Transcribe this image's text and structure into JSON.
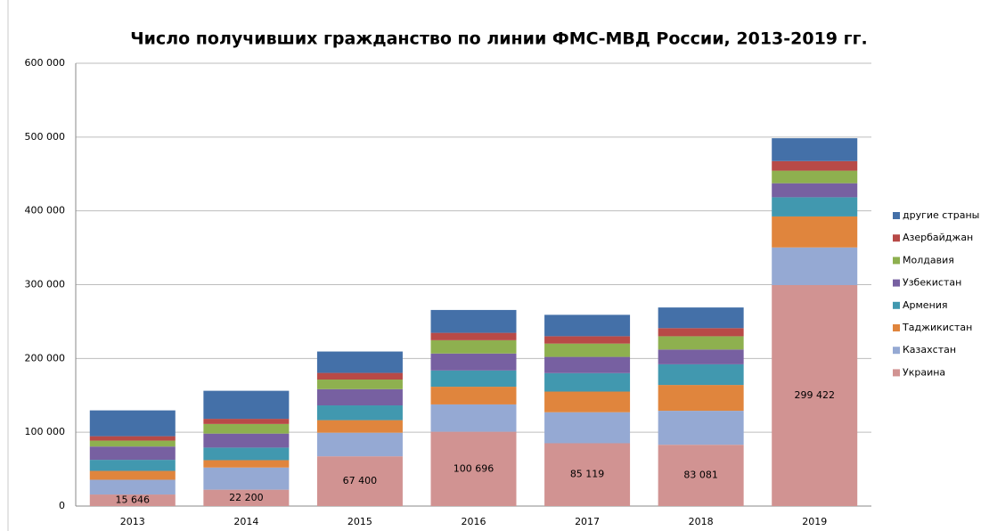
{
  "chart_data": {
    "type": "stacked_bar",
    "title": "Число получивших гражданство по линии ФМС-МВД России, 2013-2019 гг.",
    "categories": [
      "2013",
      "2014",
      "2015",
      "2016",
      "2017",
      "2018",
      "2019"
    ],
    "series": [
      {
        "name": "Украина",
        "color": "#d19392",
        "values": [
          15646,
          22200,
          67400,
          100696,
          85119,
          83081,
          299422
        ],
        "value_labels": [
          "15 646",
          "22 200",
          "67 400",
          "100 696",
          "85 119",
          "83 081",
          "299 422"
        ]
      },
      {
        "name": "Казахстан",
        "color": "#95a9d3",
        "values": [
          20000,
          30000,
          32000,
          37000,
          42000,
          46000,
          51000
        ]
      },
      {
        "name": "Таджикистан",
        "color": "#e0853d",
        "values": [
          12000,
          10000,
          17000,
          24000,
          28000,
          35000,
          42000
        ]
      },
      {
        "name": "Армения",
        "color": "#4198af",
        "values": [
          15000,
          17000,
          20000,
          22000,
          25000,
          28000,
          26000
        ]
      },
      {
        "name": "Узбекистан",
        "color": "#7760a1",
        "values": [
          18000,
          19000,
          22000,
          23000,
          22000,
          20000,
          19000
        ]
      },
      {
        "name": "Молдавия",
        "color": "#8eb04f",
        "values": [
          8000,
          13000,
          13000,
          18000,
          18000,
          18000,
          17000
        ]
      },
      {
        "name": "Азербайджан",
        "color": "#b84a47",
        "values": [
          6000,
          7000,
          9000,
          10000,
          10000,
          11000,
          13000
        ]
      },
      {
        "name": "другие страны",
        "color": "#4470a8",
        "values": [
          35000,
          38000,
          29000,
          31000,
          29000,
          28000,
          31000
        ]
      }
    ],
    "ylim": [
      0,
      600000
    ],
    "yticks": [
      0,
      {
        "value": 100000,
        "label": "100 000"
      },
      {
        "value": 200000,
        "label": "200 000"
      },
      {
        "value": 300000,
        "label": "300 000"
      },
      {
        "value": 400000,
        "label": "400 000"
      },
      {
        "value": 500000,
        "label": "500 000"
      },
      {
        "value": 600000,
        "label": "600 000"
      }
    ],
    "grid": true,
    "legend": "right"
  }
}
